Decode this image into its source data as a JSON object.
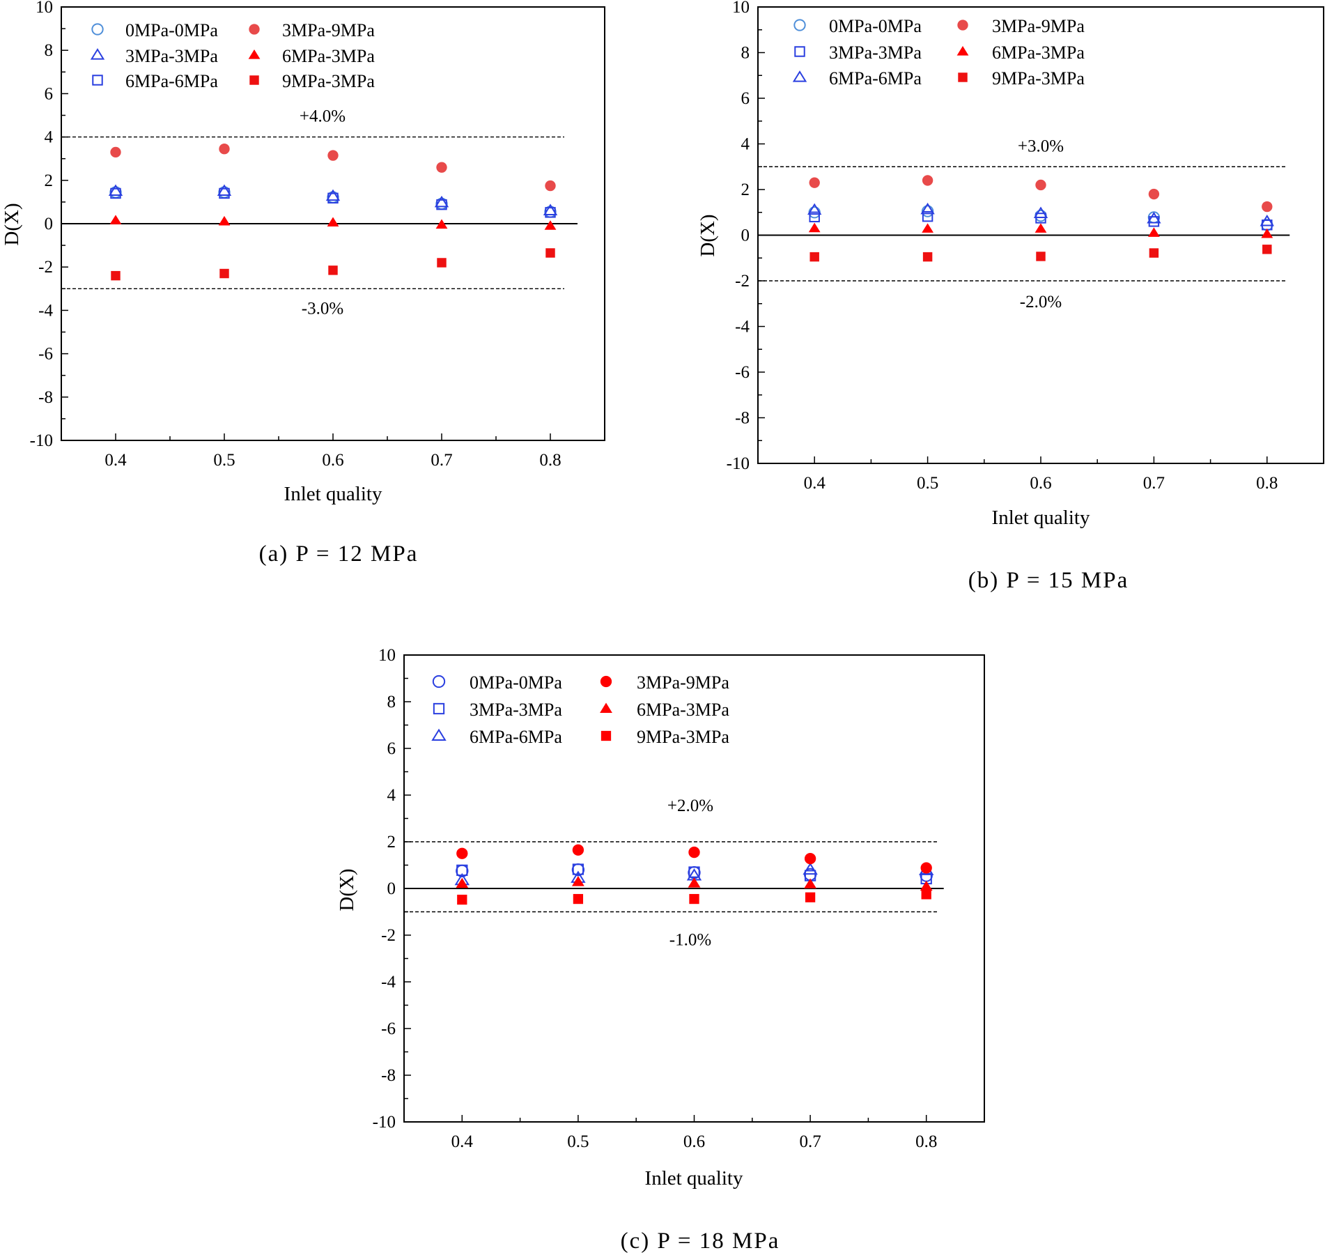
{
  "chart_data": [
    {
      "type": "scatter",
      "panel": "a",
      "caption": "(a)  P = 12 MPa",
      "xlabel": "Inlet quality",
      "ylabel": "D(X)",
      "ylim": [
        -10,
        10
      ],
      "x": [
        0.4,
        0.5,
        0.6,
        0.7,
        0.8
      ],
      "x_ticks": [
        "0.4",
        "0.5",
        "0.6",
        "0.7",
        "0.8"
      ],
      "y_ticks": [
        "-10",
        "-8",
        "-6",
        "-4",
        "-2",
        "0",
        "2",
        "4",
        "6",
        "8",
        "10"
      ],
      "upper_band": {
        "value": 4,
        "label": "+4.0%"
      },
      "lower_band": {
        "value": -3,
        "label": "-3.0%"
      },
      "series": [
        {
          "name": "0MPa-0MPa",
          "marker": "circle-open",
          "color": "#4f8fd9",
          "values": [
            1.45,
            1.45,
            1.22,
            0.92,
            0.55
          ]
        },
        {
          "name": "3MPa-3MPa",
          "marker": "triangle-open",
          "color": "#2a3fe0",
          "values": [
            1.5,
            1.5,
            1.27,
            0.97,
            0.6
          ]
        },
        {
          "name": "6MPa-6MPa",
          "marker": "square-open",
          "color": "#2a3fe0",
          "values": [
            1.4,
            1.4,
            1.18,
            0.88,
            0.52
          ]
        },
        {
          "name": "3MPa-9MPa",
          "marker": "circle-filled",
          "color": "#e84a4a",
          "values": [
            3.3,
            3.45,
            3.15,
            2.6,
            1.75
          ]
        },
        {
          "name": "6MPa-3MPa",
          "marker": "triangle-filled",
          "color": "#ff0000",
          "values": [
            0.15,
            0.1,
            0.05,
            -0.05,
            -0.1
          ]
        },
        {
          "name": "9MPa-3MPa",
          "marker": "square-filled",
          "color": "#ee1111",
          "values": [
            -2.4,
            -2.3,
            -2.15,
            -1.8,
            -1.35
          ]
        }
      ]
    },
    {
      "type": "scatter",
      "panel": "b",
      "caption": "(b) P = 15 MPa",
      "xlabel": "Inlet quality",
      "ylabel": "D(X)",
      "ylim": [
        -10,
        10
      ],
      "x": [
        0.4,
        0.5,
        0.6,
        0.7,
        0.8
      ],
      "x_ticks": [
        "0.4",
        "0.5",
        "0.6",
        "0.7",
        "0.8"
      ],
      "y_ticks": [
        "-10",
        "-8",
        "-6",
        "-4",
        "-2",
        "0",
        "2",
        "4",
        "6",
        "8",
        "10"
      ],
      "upper_band": {
        "value": 3,
        "label": "+3.0%"
      },
      "lower_band": {
        "value": -2,
        "label": "-2.0%"
      },
      "series": [
        {
          "name": "0MPa-0MPa",
          "marker": "circle-open",
          "color": "#4f8fd9",
          "values": [
            1.0,
            1.05,
            0.85,
            0.78,
            0.45
          ]
        },
        {
          "name": "3MPa-3MPa",
          "marker": "square-open",
          "color": "#2a3fe0",
          "values": [
            0.8,
            0.82,
            0.75,
            0.6,
            0.45
          ]
        },
        {
          "name": "6MPa-6MPa",
          "marker": "triangle-open",
          "color": "#2a3fe0",
          "values": [
            1.1,
            1.12,
            0.95,
            0.72,
            0.6
          ]
        },
        {
          "name": "3MPa-9MPa",
          "marker": "circle-filled",
          "color": "#e84a4a",
          "values": [
            2.3,
            2.4,
            2.2,
            1.8,
            1.25
          ]
        },
        {
          "name": "6MPa-3MPa",
          "marker": "triangle-filled",
          "color": "#ff0000",
          "values": [
            0.3,
            0.28,
            0.28,
            0.1,
            0.05
          ]
        },
        {
          "name": "9MPa-3MPa",
          "marker": "square-filled",
          "color": "#ee1111",
          "values": [
            -0.95,
            -0.95,
            -0.93,
            -0.78,
            -0.62
          ]
        }
      ]
    },
    {
      "type": "scatter",
      "panel": "c",
      "caption": "(c)  P = 18 MPa",
      "xlabel": "Inlet quality",
      "ylabel": "D(X)",
      "ylim": [
        -10,
        10
      ],
      "x": [
        0.4,
        0.5,
        0.6,
        0.7,
        0.8
      ],
      "x_ticks": [
        "0.4",
        "0.5",
        "0.6",
        "0.7",
        "0.8"
      ],
      "y_ticks": [
        "-10",
        "-8",
        "-6",
        "-4",
        "-2",
        "0",
        "2",
        "4",
        "6",
        "8",
        "10"
      ],
      "upper_band": {
        "value": 2,
        "label": "+2.0%"
      },
      "lower_band": {
        "value": -1,
        "label": "-1.0%"
      },
      "series": [
        {
          "name": "0MPa-0MPa",
          "marker": "circle-open",
          "color": "#2a3fe0",
          "values": [
            0.75,
            0.8,
            0.68,
            0.6,
            0.55
          ]
        },
        {
          "name": "3MPa-3MPa",
          "marker": "square-open",
          "color": "#2a3fe0",
          "values": [
            0.78,
            0.82,
            0.7,
            0.55,
            0.42
          ]
        },
        {
          "name": "6MPa-6MPa",
          "marker": "triangle-open",
          "color": "#2a3fe0",
          "values": [
            0.35,
            0.45,
            0.55,
            0.8,
            0.78
          ]
        },
        {
          "name": "3MPa-9MPa",
          "marker": "circle-filled",
          "color": "#ff0000",
          "values": [
            1.5,
            1.65,
            1.55,
            1.28,
            0.88
          ]
        },
        {
          "name": "6MPa-3MPa",
          "marker": "triangle-filled",
          "color": "#ff0000",
          "values": [
            0.2,
            0.28,
            0.22,
            0.18,
            0.08
          ]
        },
        {
          "name": "9MPa-3MPa",
          "marker": "square-filled",
          "color": "#ff0000",
          "values": [
            -0.48,
            -0.45,
            -0.45,
            -0.38,
            -0.25
          ]
        }
      ]
    }
  ]
}
